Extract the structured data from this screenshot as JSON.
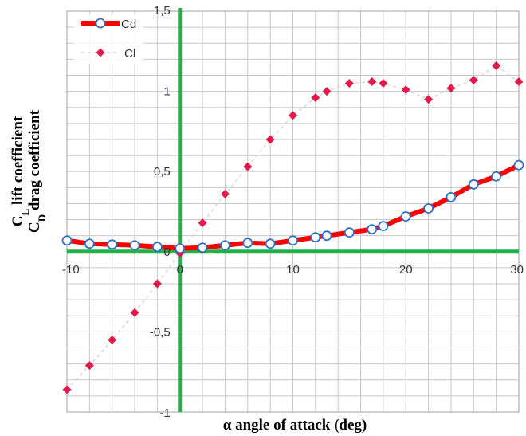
{
  "chart_data": {
    "type": "line",
    "xlabel": "α angle of attack (deg)",
    "ylabel_lines": [
      {
        "main": "C",
        "sub": "L",
        "rest": " lift coefficient"
      },
      {
        "main": "C",
        "sub": "D",
        "rest": " drag coefficient"
      }
    ],
    "xlim": [
      -10,
      30
    ],
    "ylim": [
      -1,
      1.5
    ],
    "x_ticks": [
      -10,
      0,
      10,
      20,
      30
    ],
    "y_ticks": [
      -1,
      -0.5,
      0,
      0.5,
      1,
      1.5
    ],
    "x_tick_labels": [
      "-10",
      "0",
      "10",
      "20",
      "30"
    ],
    "y_tick_labels": [
      "-1",
      "-0,5",
      "0",
      "0,5",
      "1",
      "1,5"
    ],
    "x_grid_step": 2,
    "y_grid_step": 0.1,
    "grid": true,
    "legend_position": "top-left",
    "colors": {
      "axis_zero": "#22b04a",
      "grid": "#c8c8c8",
      "cd_line": "#ff0000",
      "cd_marker_edge": "#2f6fc8",
      "cl_marker": "#e6194b",
      "cl_line": "#d8d8d8"
    },
    "series": [
      {
        "name": "Cd",
        "style": "line-circle",
        "x": [
          -10,
          -8,
          -6,
          -4,
          -2,
          0,
          2,
          4,
          6,
          8,
          10,
          12,
          13,
          15,
          17,
          18,
          20,
          22,
          24,
          26,
          28,
          30
        ],
        "y": [
          0.07,
          0.05,
          0.045,
          0.04,
          0.03,
          0.02,
          0.025,
          0.04,
          0.055,
          0.05,
          0.07,
          0.09,
          0.1,
          0.12,
          0.14,
          0.16,
          0.22,
          0.27,
          0.34,
          0.42,
          0.47,
          0.54
        ]
      },
      {
        "name": "Cl",
        "style": "diamond",
        "x": [
          -10,
          -8,
          -6,
          -4,
          -2,
          0,
          2,
          4,
          6,
          8,
          10,
          12,
          13,
          15,
          17,
          18,
          20,
          22,
          24,
          26,
          28,
          30
        ],
        "y": [
          -0.86,
          -0.71,
          -0.55,
          -0.38,
          -0.2,
          -0.01,
          0.18,
          0.36,
          0.53,
          0.7,
          0.85,
          0.96,
          1.0,
          1.05,
          1.06,
          1.05,
          1.01,
          0.95,
          1.02,
          1.07,
          1.16,
          1.06
        ]
      }
    ]
  }
}
